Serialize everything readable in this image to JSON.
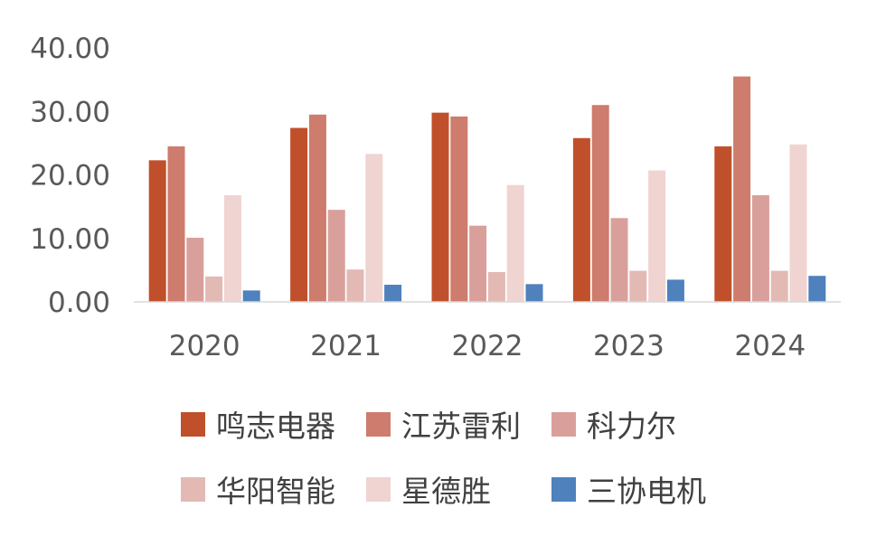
{
  "chart_data": {
    "type": "bar",
    "categories": [
      "2020",
      "2021",
      "2022",
      "2023",
      "2024"
    ],
    "ylim": [
      0,
      40
    ],
    "yticks": [
      "0.00",
      "10.00",
      "20.00",
      "30.00",
      "40.00"
    ],
    "grid": false,
    "legend_position": "bottom",
    "series": [
      {
        "name": "鸣志电器",
        "color": "#c0502b",
        "values": [
          22.3,
          27.4,
          29.8,
          25.8,
          24.5
        ]
      },
      {
        "name": "江苏雷利",
        "color": "#cd7c6e",
        "values": [
          24.5,
          29.5,
          29.2,
          31.0,
          35.5
        ]
      },
      {
        "name": "科力尔",
        "color": "#d9a09b",
        "values": [
          10.1,
          14.5,
          12.0,
          13.2,
          16.8
        ]
      },
      {
        "name": "华阳智能",
        "color": "#e3b9b4",
        "values": [
          4.0,
          5.1,
          4.7,
          4.9,
          4.9
        ]
      },
      {
        "name": "星德胜",
        "color": "#efd4d1",
        "values": [
          16.8,
          23.3,
          18.4,
          20.7,
          24.8
        ]
      },
      {
        "name": "三协电机",
        "color": "#4f81bd",
        "values": [
          1.8,
          2.7,
          2.8,
          3.5,
          4.1
        ]
      }
    ]
  }
}
